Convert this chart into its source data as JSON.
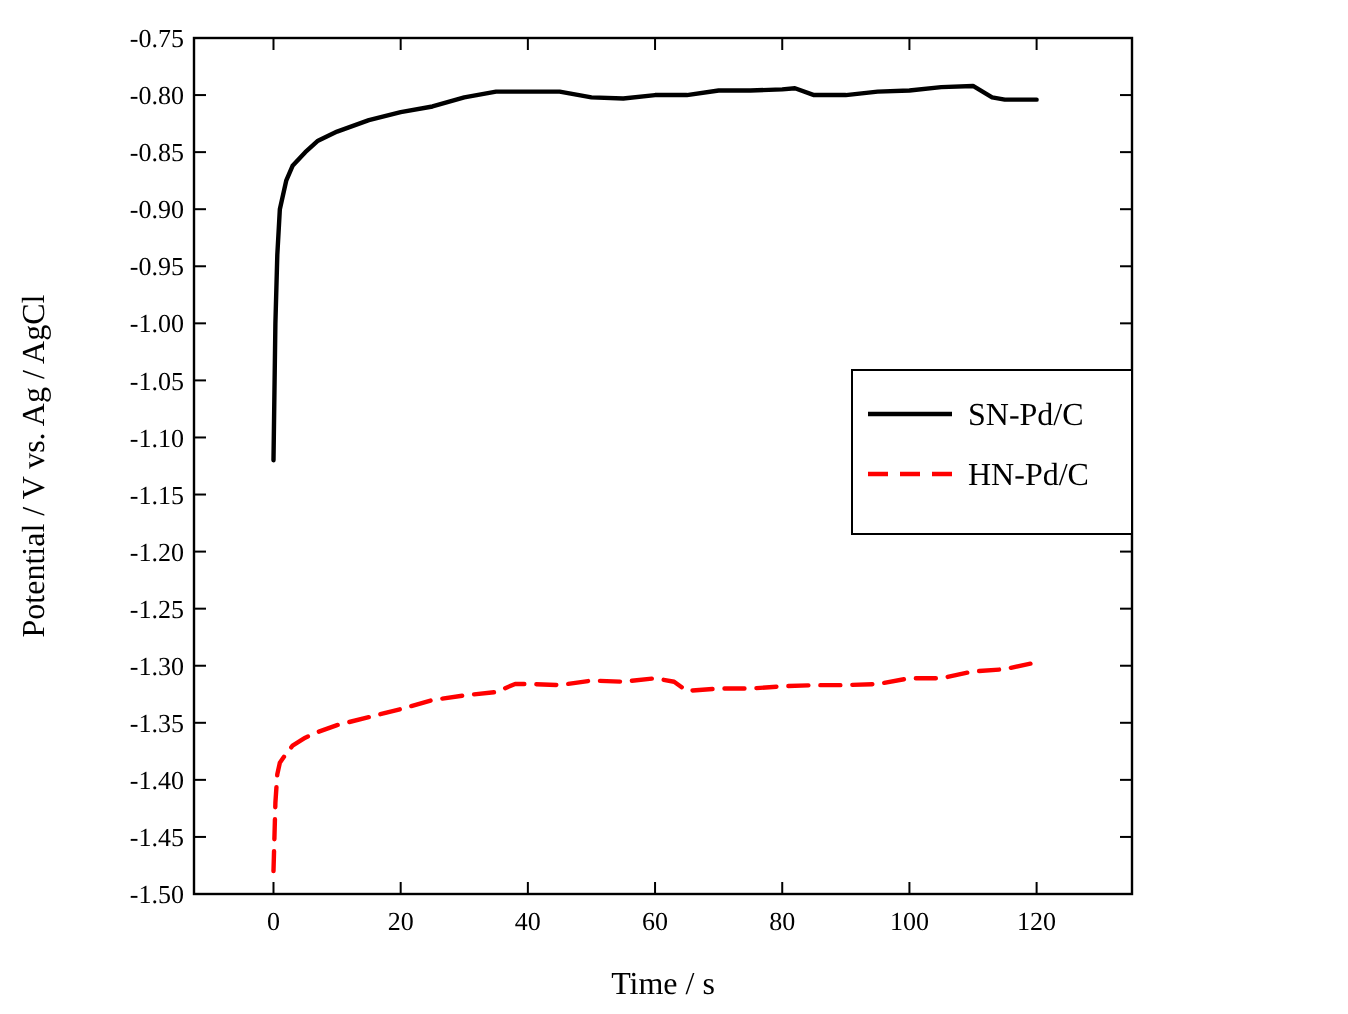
{
  "chart_data": {
    "type": "line",
    "xlabel": "Time / s",
    "ylabel": "Potential / V vs. Ag / AgCl",
    "xlim": [
      -12.5,
      135
    ],
    "xticks": [
      0,
      20,
      40,
      60,
      80,
      100,
      120
    ],
    "ylim": [
      -1.5,
      -0.75
    ],
    "yticks": [
      {
        "value": -0.75,
        "label": "-0.75"
      },
      {
        "value": -0.8,
        "label": "-0.80"
      },
      {
        "value": -0.85,
        "label": "-0.85"
      },
      {
        "value": -0.9,
        "label": "-0.90"
      },
      {
        "value": -0.95,
        "label": "-0.95"
      },
      {
        "value": -1.0,
        "label": "-1.00"
      },
      {
        "value": -1.05,
        "label": "-1.05"
      },
      {
        "value": -1.1,
        "label": "-1.10"
      },
      {
        "value": -1.15,
        "label": "-1.15"
      },
      {
        "value": -1.2,
        "label": "-1.20"
      },
      {
        "value": -1.25,
        "label": "-1.25"
      },
      {
        "value": -1.3,
        "label": "-1.30"
      },
      {
        "value": -1.35,
        "label": "-1.35"
      },
      {
        "value": -1.4,
        "label": "-1.40"
      },
      {
        "value": -1.45,
        "label": "-1.45"
      },
      {
        "value": -1.5,
        "label": "-1.50"
      }
    ],
    "legend": "right",
    "grid": false,
    "series": [
      {
        "name": "SN-Pd/C",
        "color": "#000000",
        "line_style": "solid",
        "x": [
          0,
          0.3,
          0.6,
          1,
          2,
          3,
          5,
          7,
          10,
          15,
          20,
          25,
          30,
          35,
          40,
          45,
          50,
          55,
          60,
          65,
          70,
          75,
          80,
          82,
          85,
          90,
          95,
          100,
          105,
          110,
          113,
          115,
          120
        ],
        "values": [
          -1.12,
          -1.0,
          -0.94,
          -0.9,
          -0.875,
          -0.862,
          -0.85,
          -0.84,
          -0.832,
          -0.822,
          -0.815,
          -0.81,
          -0.802,
          -0.797,
          -0.797,
          -0.797,
          -0.802,
          -0.803,
          -0.8,
          -0.8,
          -0.796,
          -0.796,
          -0.795,
          -0.794,
          -0.8,
          -0.8,
          -0.797,
          -0.796,
          -0.793,
          -0.792,
          -0.802,
          -0.804,
          -0.804
        ]
      },
      {
        "name": "HN-Pd/C",
        "color": "#ff0000",
        "line_style": "dashed",
        "x": [
          0,
          0.3,
          0.6,
          1,
          2,
          3,
          5,
          7,
          10,
          15,
          20,
          25,
          30,
          35,
          38,
          40,
          45,
          50,
          55,
          60,
          63,
          65,
          70,
          75,
          80,
          85,
          90,
          95,
          100,
          105,
          110,
          115,
          120
        ],
        "values": [
          -1.48,
          -1.42,
          -1.395,
          -1.385,
          -1.377,
          -1.37,
          -1.363,
          -1.358,
          -1.352,
          -1.345,
          -1.338,
          -1.33,
          -1.326,
          -1.323,
          -1.316,
          -1.316,
          -1.317,
          -1.313,
          -1.314,
          -1.311,
          -1.314,
          -1.322,
          -1.32,
          -1.32,
          -1.318,
          -1.317,
          -1.317,
          -1.316,
          -1.311,
          -1.311,
          -1.305,
          -1.303,
          -1.297
        ]
      }
    ]
  }
}
